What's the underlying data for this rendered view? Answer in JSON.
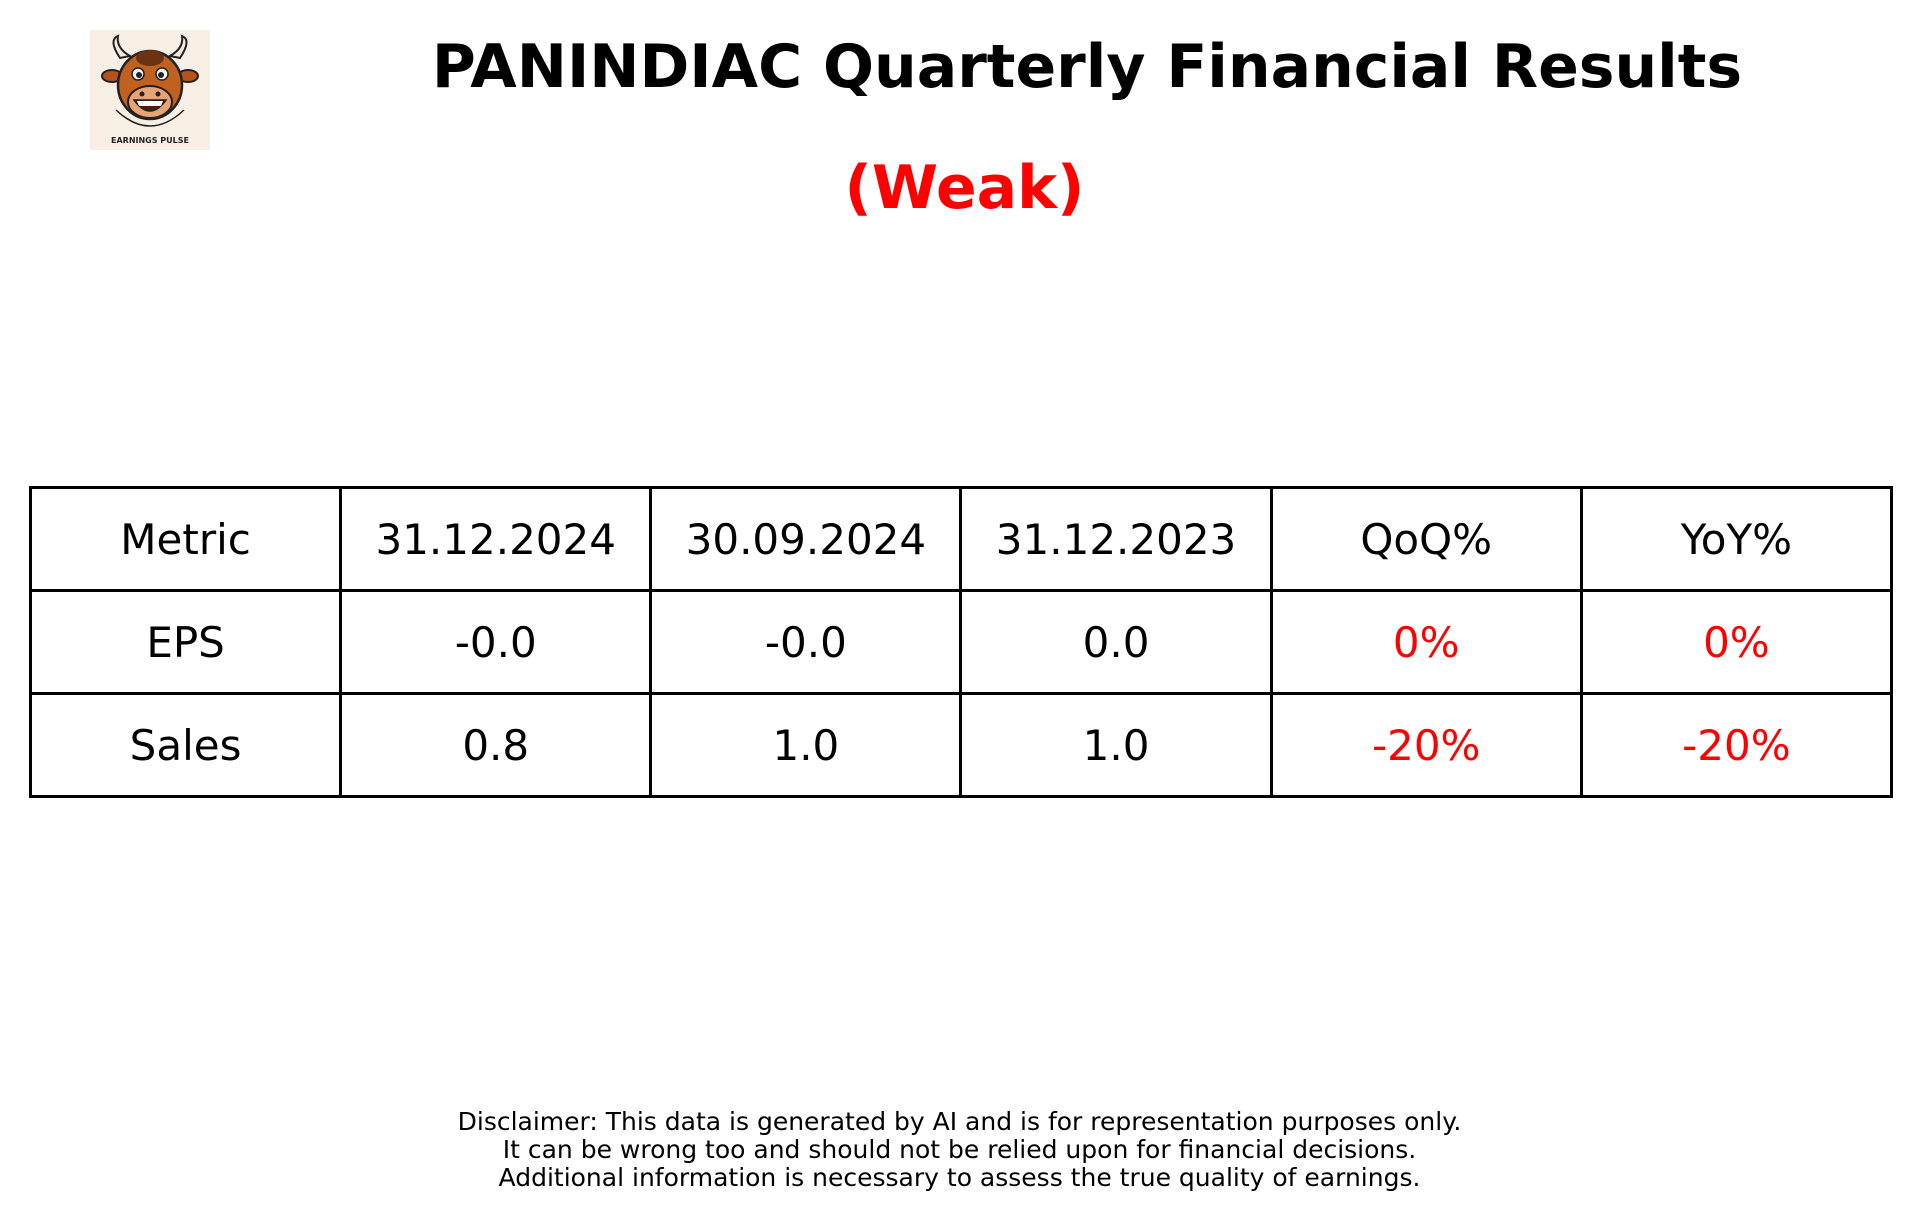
{
  "header": {
    "title": "PANINDIAC Quarterly Financial Results",
    "rating": "(Weak)",
    "rating_color": "#ff0000",
    "logo_text": "EARNINGS PULSE"
  },
  "chart_data": {
    "type": "table",
    "columns": [
      "Metric",
      "31.12.2024",
      "30.09.2024",
      "31.12.2023",
      "QoQ%",
      "YoY%"
    ],
    "rows": [
      [
        "EPS",
        "-0.0",
        "-0.0",
        "0.0",
        "0%",
        "0%"
      ],
      [
        "Sales",
        "0.8",
        "1.0",
        "1.0",
        "-20%",
        "-20%"
      ]
    ],
    "change_color": "#ff0000"
  },
  "disclaimer": {
    "line1": "Disclaimer: This data is generated by AI and is for representation purposes only.",
    "line2": "It can be wrong too and should not be relied upon for financial decisions.",
    "line3": "Additional information is necessary to assess the true quality of earnings."
  }
}
